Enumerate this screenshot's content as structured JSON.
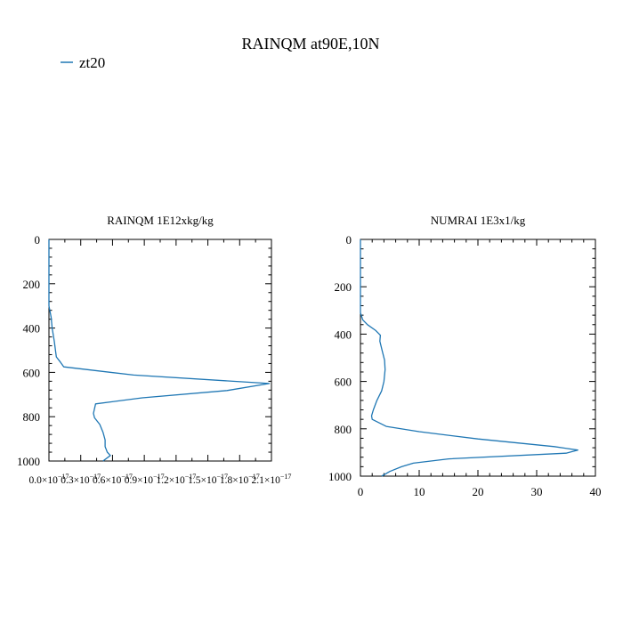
{
  "figure": {
    "title": "RAINQM at90E,10N",
    "legend": [
      {
        "label": "zt20",
        "color": "#1f77b4"
      }
    ]
  },
  "chart_data": [
    {
      "type": "line",
      "title": "RAINQM  1E12xkg/kg",
      "xlabel": "",
      "ylabel": "",
      "series_color": "#1f77b4",
      "xlim": [
        0,
        2.1e-17
      ],
      "ylim": [
        1000,
        0
      ],
      "y_inverted": true,
      "x_tick_labels": [
        {
          "value": 0,
          "text": "0.0×10",
          "exp": "−17"
        },
        {
          "value": 3e-18,
          "text": "0.3×10",
          "exp": "−17"
        },
        {
          "value": 6e-18,
          "text": "0.6×10",
          "exp": "−17"
        },
        {
          "value": 9e-18,
          "text": "0.9×10",
          "exp": "−17"
        },
        {
          "value": 1.2e-17,
          "text": "1.2×10",
          "exp": "−17"
        },
        {
          "value": 1.5e-17,
          "text": "1.5×10",
          "exp": "−17"
        },
        {
          "value": 1.8e-17,
          "text": "1.8×10",
          "exp": "−17"
        },
        {
          "value": 2.1e-17,
          "text": "2.1×10",
          "exp": "−17"
        }
      ],
      "y_ticks": [
        0,
        200,
        400,
        600,
        800,
        1000
      ],
      "y_tick_labels": [
        "0",
        "200",
        "400",
        "600",
        "800",
        "1000"
      ],
      "series": [
        {
          "name": "zt20",
          "points": [
            [
              0,
              0
            ],
            [
              0,
              300
            ],
            [
              2e-19,
              350
            ],
            [
              3e-19,
              400
            ],
            [
              5e-19,
              460
            ],
            [
              7e-19,
              530
            ],
            [
              1.1e-18,
              555
            ],
            [
              1.4e-18,
              575
            ],
            [
              8e-18,
              612
            ],
            [
              2.08e-17,
              650
            ],
            [
              1.68e-17,
              682
            ],
            [
              8.8e-18,
              715
            ],
            [
              4.4e-18,
              742
            ],
            [
              4.2e-18,
              785
            ],
            [
              4.3e-18,
              805
            ],
            [
              4.8e-18,
              835
            ],
            [
              5.1e-18,
              870
            ],
            [
              5.3e-18,
              905
            ],
            [
              5.3e-18,
              935
            ],
            [
              5.5e-18,
              960
            ],
            [
              5.8e-18,
              975
            ],
            [
              5.1e-18,
              1000
            ]
          ]
        }
      ]
    },
    {
      "type": "line",
      "title": "NUMRAI  1E3x1/kg",
      "xlabel": "",
      "ylabel": "",
      "series_color": "#1f77b4",
      "xlim": [
        0,
        40
      ],
      "ylim": [
        1000,
        0
      ],
      "y_inverted": true,
      "x_ticks": [
        0,
        10,
        20,
        30,
        40
      ],
      "x_tick_labels": [
        "0",
        "10",
        "20",
        "30",
        "40"
      ],
      "y_ticks": [
        0,
        200,
        400,
        600,
        800,
        1000
      ],
      "y_tick_labels": [
        "0",
        "200",
        "400",
        "600",
        "800",
        "1000"
      ],
      "series": [
        {
          "name": "zt20",
          "points": [
            [
              0,
              0
            ],
            [
              0,
              310
            ],
            [
              0.4,
              340
            ],
            [
              1.2,
              360
            ],
            [
              2.6,
              385
            ],
            [
              3.4,
              405
            ],
            [
              3.3,
              430
            ],
            [
              3.7,
              470
            ],
            [
              4.1,
              510
            ],
            [
              4.2,
              550
            ],
            [
              4.0,
              600
            ],
            [
              3.6,
              640
            ],
            [
              2.8,
              680
            ],
            [
              2.2,
              720
            ],
            [
              1.9,
              745
            ],
            [
              2.0,
              760
            ],
            [
              4.4,
              790
            ],
            [
              10.0,
              812
            ],
            [
              20.0,
              843
            ],
            [
              33.0,
              875
            ],
            [
              37.0,
              890
            ],
            [
              35.0,
              903
            ],
            [
              15.0,
              927
            ],
            [
              9.0,
              945
            ],
            [
              7.0,
              960
            ],
            [
              5.0,
              980
            ],
            [
              3.6,
              1000
            ]
          ]
        }
      ]
    }
  ]
}
